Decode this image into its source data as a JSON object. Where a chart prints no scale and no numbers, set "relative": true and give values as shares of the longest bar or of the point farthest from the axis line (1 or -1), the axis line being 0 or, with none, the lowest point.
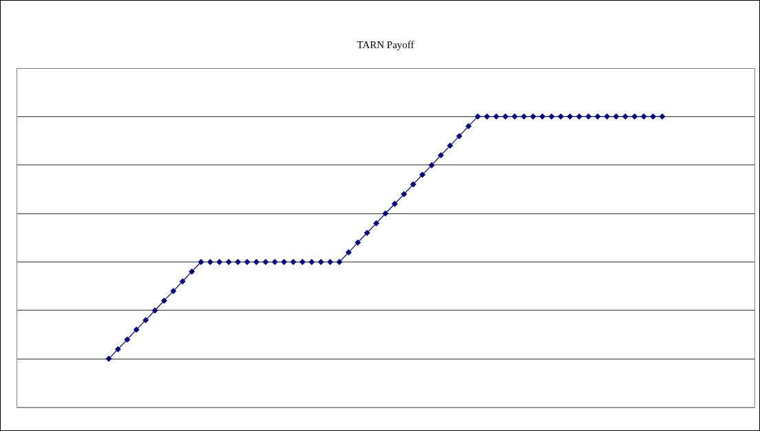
{
  "chart_data": {
    "type": "line",
    "title": "TARN Payoff",
    "relative": true,
    "grid": "y",
    "legend": false,
    "marker": "diamond",
    "line_style": "solid",
    "categories": [
      null,
      null,
      null,
      null,
      null,
      null,
      null,
      null,
      null,
      null,
      null,
      null,
      null,
      null,
      null,
      null,
      null,
      null,
      null,
      null,
      null,
      null,
      null,
      null,
      null,
      null,
      null,
      null,
      null,
      null,
      null,
      null,
      null,
      null,
      null,
      null,
      null,
      null,
      null,
      null,
      null,
      null,
      null,
      null,
      null,
      null,
      null,
      null,
      null,
      null,
      null,
      null,
      null,
      null,
      null,
      null,
      null,
      null,
      null,
      null,
      null,
      null,
      null,
      null,
      null,
      null,
      null,
      null,
      null,
      null,
      null,
      null,
      null,
      null,
      null,
      null,
      null,
      null,
      null,
      null,
      null
    ],
    "series": [
      {
        "color": "#000080",
        "values": [
          null,
          null,
          null,
          null,
          null,
          null,
          null,
          null,
          null,
          null,
          0.167,
          0.2,
          0.233,
          0.267,
          0.3,
          0.333,
          0.367,
          0.4,
          0.433,
          0.467,
          0.5,
          0.5,
          0.5,
          0.5,
          0.5,
          0.5,
          0.5,
          0.5,
          0.5,
          0.5,
          0.5,
          0.5,
          0.5,
          0.5,
          0.5,
          0.5,
          0.533,
          0.567,
          0.6,
          0.633,
          0.667,
          0.7,
          0.733,
          0.767,
          0.8,
          0.833,
          0.867,
          0.9,
          0.933,
          0.967,
          1,
          1,
          1,
          1,
          1,
          1,
          1,
          1,
          1,
          1,
          1,
          1,
          1,
          1,
          1,
          1,
          1,
          1,
          1,
          1,
          1,
          null,
          null,
          null,
          null,
          null,
          null,
          null,
          null,
          null,
          null
        ]
      }
    ]
  }
}
